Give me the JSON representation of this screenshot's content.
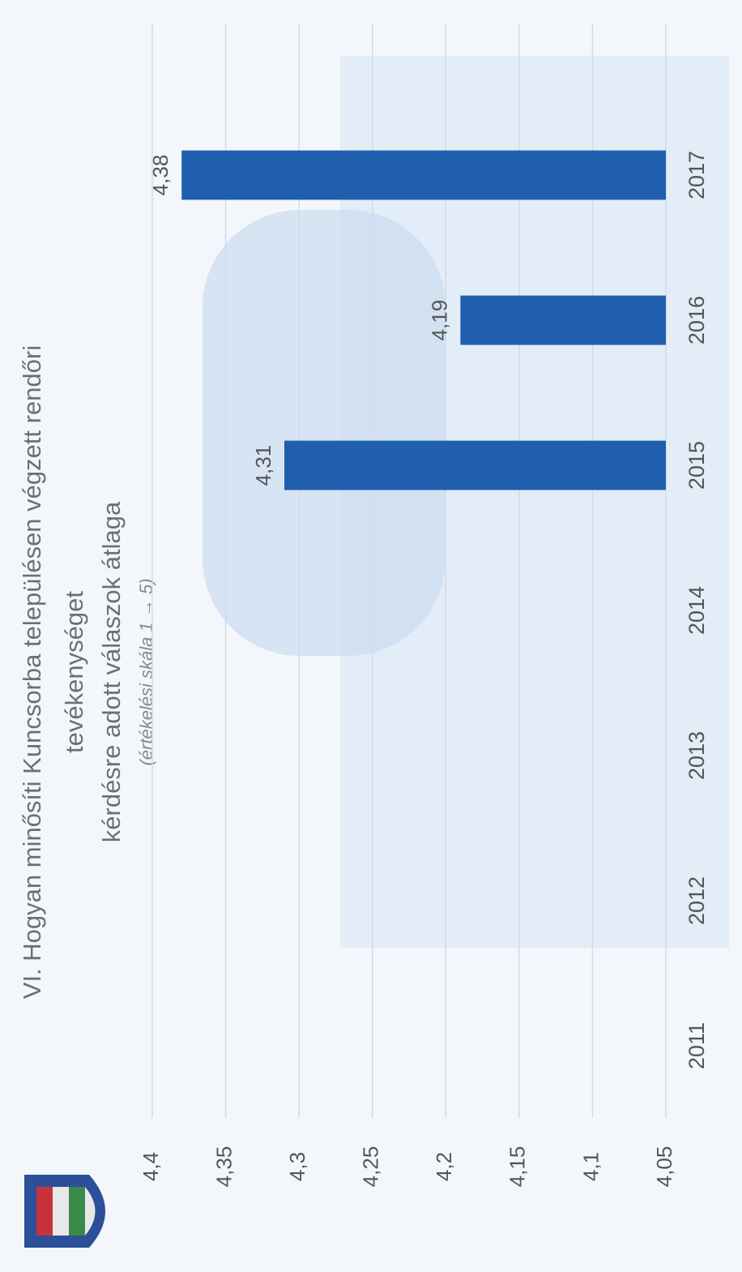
{
  "chart_data": {
    "type": "bar",
    "title": [
      "VI. Hogyan minősíti  Kuncsorba településen végzett rendőri",
      "tevékenységet",
      "kérdésre adott válaszok átlaga"
    ],
    "subtitle": "(értékelési skála 1 → 5)",
    "categories": [
      "2011",
      "2012",
      "2013",
      "2014",
      "2015",
      "2016",
      "2017"
    ],
    "values": [
      null,
      null,
      null,
      null,
      4.31,
      4.19,
      4.38
    ],
    "value_labels": [
      null,
      null,
      null,
      null,
      "4,31",
      "4,19",
      "4,38"
    ],
    "color": "#1f5fae",
    "ylim": [
      4.05,
      4.4
    ],
    "yticks": [
      {
        "value": 4.05,
        "label": "4,05"
      },
      {
        "value": 4.1,
        "label": "4,1"
      },
      {
        "value": 4.15,
        "label": "4,15"
      },
      {
        "value": 4.2,
        "label": "4,2"
      },
      {
        "value": 4.25,
        "label": "4,25"
      },
      {
        "value": 4.3,
        "label": "4,3"
      },
      {
        "value": 4.35,
        "label": "4,35"
      },
      {
        "value": 4.4,
        "label": "4,4"
      }
    ],
    "grid": true
  }
}
